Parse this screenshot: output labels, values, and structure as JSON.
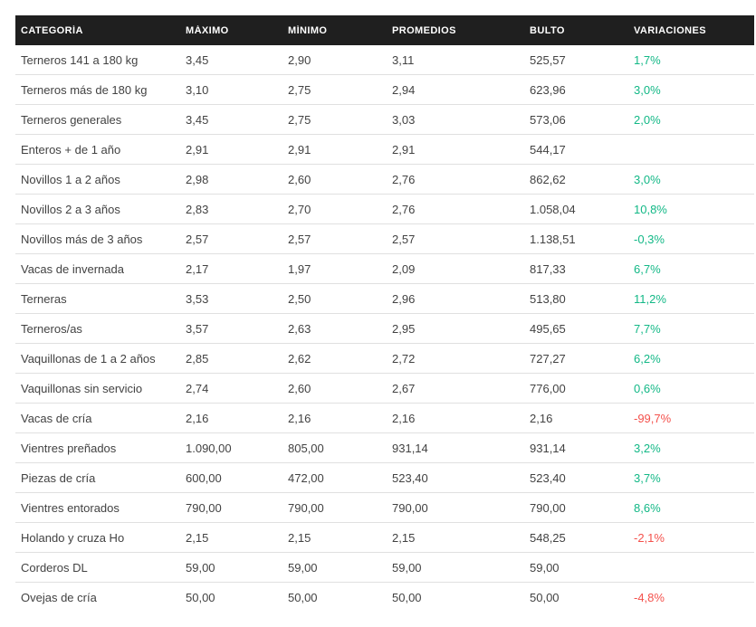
{
  "colors": {
    "background": "#ffffff",
    "header_bg": "#1f1f1f",
    "header_text": "#ffffff",
    "body_text": "#424242",
    "row_border": "#e0e0e0",
    "positive": "#12b886",
    "negative": "#f4514c"
  },
  "chart_data": {
    "type": "table",
    "title": "",
    "columns": [
      "CATEGORÍA",
      "MÁXIMO",
      "MÍNIMO",
      "PROMEDIOS",
      "BULTO",
      "VARIACIONES"
    ],
    "rows": [
      {
        "categoria": "Terneros 141 a 180 kg",
        "maximo": "3,45",
        "minimo": "2,90",
        "promedios": "3,11",
        "bulto": "525,57",
        "variacion": "1,7%",
        "variacion_color": "green"
      },
      {
        "categoria": "Terneros más de 180 kg",
        "maximo": "3,10",
        "minimo": "2,75",
        "promedios": "2,94",
        "bulto": "623,96",
        "variacion": "3,0%",
        "variacion_color": "green"
      },
      {
        "categoria": "Terneros generales",
        "maximo": "3,45",
        "minimo": "2,75",
        "promedios": "3,03",
        "bulto": "573,06",
        "variacion": "2,0%",
        "variacion_color": "green"
      },
      {
        "categoria": "Enteros + de 1 año",
        "maximo": "2,91",
        "minimo": "2,91",
        "promedios": "2,91",
        "bulto": "544,17",
        "variacion": "",
        "variacion_color": ""
      },
      {
        "categoria": "Novillos 1 a 2 años",
        "maximo": "2,98",
        "minimo": "2,60",
        "promedios": "2,76",
        "bulto": "862,62",
        "variacion": "3,0%",
        "variacion_color": "green"
      },
      {
        "categoria": "Novillos 2 a 3 años",
        "maximo": "2,83",
        "minimo": "2,70",
        "promedios": "2,76",
        "bulto": "1.058,04",
        "variacion": "10,8%",
        "variacion_color": "green"
      },
      {
        "categoria": "Novillos más de 3 años",
        "maximo": "2,57",
        "minimo": "2,57",
        "promedios": "2,57",
        "bulto": "1.138,51",
        "variacion": "-0,3%",
        "variacion_color": "green"
      },
      {
        "categoria": "Vacas de invernada",
        "maximo": "2,17",
        "minimo": "1,97",
        "promedios": "2,09",
        "bulto": "817,33",
        "variacion": "6,7%",
        "variacion_color": "green"
      },
      {
        "categoria": "Terneras",
        "maximo": "3,53",
        "minimo": "2,50",
        "promedios": "2,96",
        "bulto": "513,80",
        "variacion": "11,2%",
        "variacion_color": "green"
      },
      {
        "categoria": "Terneros/as",
        "maximo": "3,57",
        "minimo": "2,63",
        "promedios": "2,95",
        "bulto": "495,65",
        "variacion": "7,7%",
        "variacion_color": "green"
      },
      {
        "categoria": "Vaquillonas de 1 a 2 años",
        "maximo": "2,85",
        "minimo": "2,62",
        "promedios": "2,72",
        "bulto": "727,27",
        "variacion": "6,2%",
        "variacion_color": "green"
      },
      {
        "categoria": "Vaquillonas sin servicio",
        "maximo": "2,74",
        "minimo": "2,60",
        "promedios": "2,67",
        "bulto": "776,00",
        "variacion": "0,6%",
        "variacion_color": "green"
      },
      {
        "categoria": "Vacas de cría",
        "maximo": "2,16",
        "minimo": "2,16",
        "promedios": "2,16",
        "bulto": "2,16",
        "variacion": "-99,7%",
        "variacion_color": "red"
      },
      {
        "categoria": "Vientres preñados",
        "maximo": "1.090,00",
        "minimo": "805,00",
        "promedios": "931,14",
        "bulto": "931,14",
        "variacion": "3,2%",
        "variacion_color": "green"
      },
      {
        "categoria": "Piezas de cría",
        "maximo": "600,00",
        "minimo": "472,00",
        "promedios": "523,40",
        "bulto": "523,40",
        "variacion": "3,7%",
        "variacion_color": "green"
      },
      {
        "categoria": "Vientres entorados",
        "maximo": "790,00",
        "minimo": "790,00",
        "promedios": "790,00",
        "bulto": "790,00",
        "variacion": "8,6%",
        "variacion_color": "green"
      },
      {
        "categoria": "Holando y cruza Ho",
        "maximo": "2,15",
        "minimo": "2,15",
        "promedios": "2,15",
        "bulto": "548,25",
        "variacion": "-2,1%",
        "variacion_color": "red"
      },
      {
        "categoria": "Corderos DL",
        "maximo": "59,00",
        "minimo": "59,00",
        "promedios": "59,00",
        "bulto": "59,00",
        "variacion": "",
        "variacion_color": ""
      },
      {
        "categoria": "Ovejas de cría",
        "maximo": "50,00",
        "minimo": "50,00",
        "promedios": "50,00",
        "bulto": "50,00",
        "variacion": "-4,8%",
        "variacion_color": "red"
      }
    ]
  }
}
